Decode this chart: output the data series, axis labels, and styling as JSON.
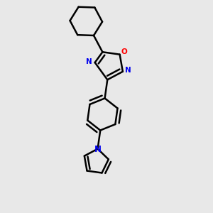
{
  "bg_color": "#e8e8e8",
  "bond_color": "#000000",
  "N_color": "#0000ee",
  "O_color": "#ff0000",
  "line_width": 1.8,
  "figsize": [
    3.0,
    3.0
  ],
  "dpi": 100,
  "xlim": [
    0.05,
    0.75
  ],
  "ylim": [
    -0.05,
    1.02
  ]
}
